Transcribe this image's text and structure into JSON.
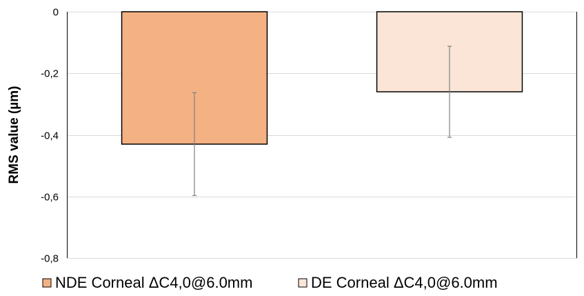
{
  "chart_data": {
    "type": "bar",
    "title": "",
    "xlabel": "",
    "ylabel": "RMS value (µm)",
    "ylim": [
      -0.8,
      0
    ],
    "yticks": [
      0,
      -0.2,
      -0.4,
      -0.6,
      -0.8
    ],
    "ytick_labels": [
      "0",
      "-0,2",
      "-0,4",
      "-0,6",
      "-0,8"
    ],
    "grid": true,
    "legend_position": "bottom",
    "series": [
      {
        "name": "NDE Corneal ΔC4,0@6.0mm",
        "value": -0.43,
        "error": 0.167,
        "color": "#F4B183"
      },
      {
        "name": "DE Corneal ΔC4,0@6.0mm",
        "value": -0.26,
        "error": 0.148,
        "color": "#FBE5D6"
      }
    ]
  }
}
